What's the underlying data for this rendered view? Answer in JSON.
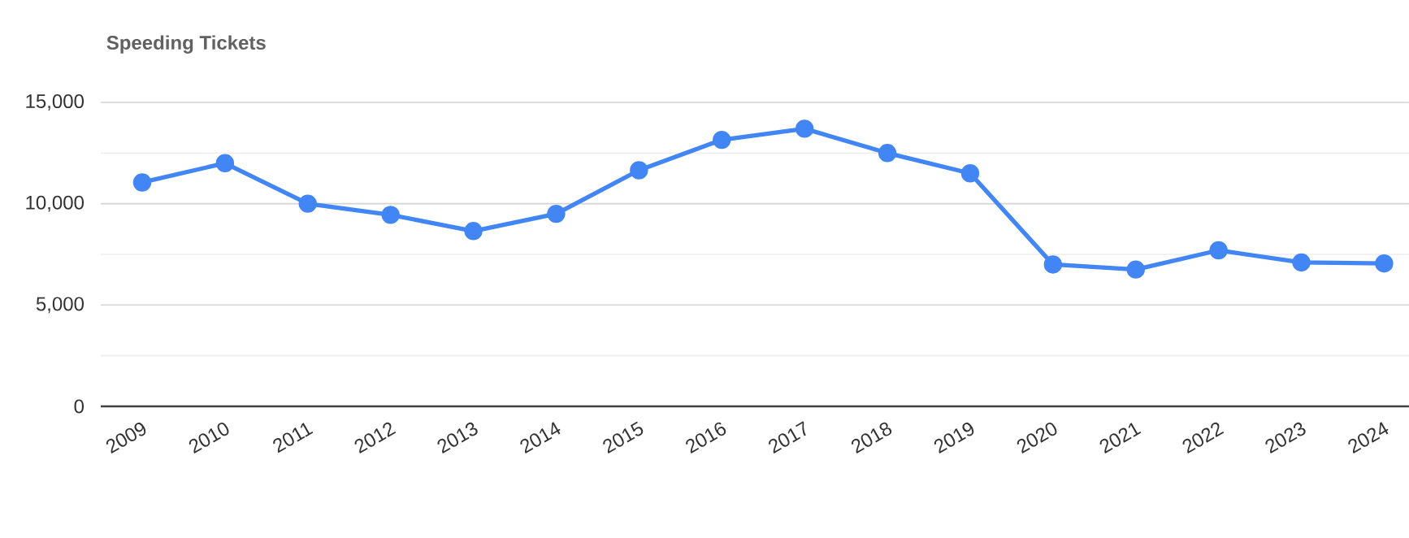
{
  "chart_data": {
    "type": "line",
    "title": "Speeding Tickets",
    "categories": [
      "2009",
      "2010",
      "2011",
      "2012",
      "2013",
      "2014",
      "2015",
      "2016",
      "2017",
      "2018",
      "2019",
      "2020",
      "2021",
      "2022",
      "2023",
      "2024"
    ],
    "series": [
      {
        "color": "#4285f4",
        "values": [
          11050,
          12000,
          10000,
          9450,
          8650,
          9500,
          11650,
          13150,
          13700,
          12500,
          11500,
          7000,
          6750,
          7700,
          7100,
          7050
        ]
      }
    ],
    "ylim": [
      0,
      15000
    ],
    "yticks": [
      {
        "value": 0,
        "label": "0"
      },
      {
        "value": 2500,
        "label": null
      },
      {
        "value": 5000,
        "label": "5,000"
      },
      {
        "value": 7500,
        "label": null
      },
      {
        "value": 10000,
        "label": "10,000"
      },
      {
        "value": 12500,
        "label": null
      },
      {
        "value": 15000,
        "label": "15,000"
      }
    ],
    "grid": "y",
    "marker": "circle",
    "line_style": "solid"
  }
}
